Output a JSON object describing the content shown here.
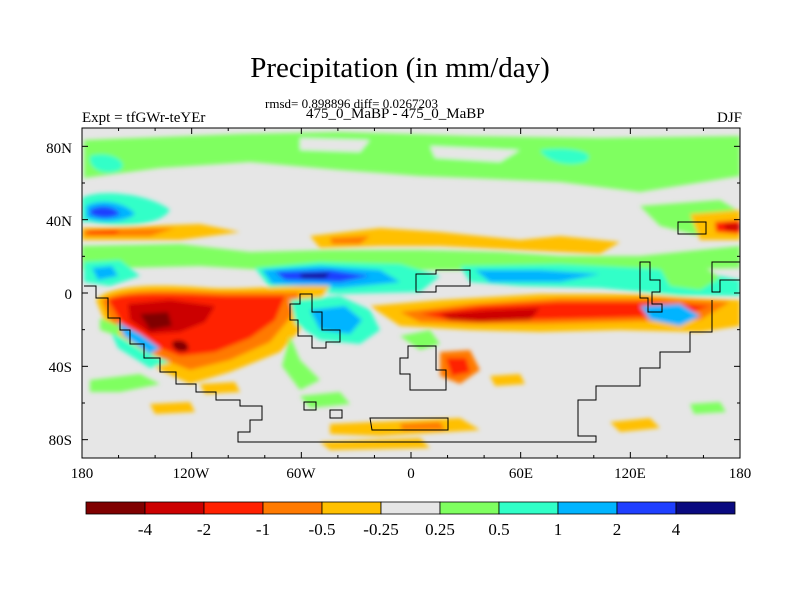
{
  "title": "Precipitation (in mm/day)",
  "stats_line": "rmsd= 0.898896 diff= 0.0267203",
  "experiment_label": "Expt = tfGWr-teYEr",
  "experiment_pair": "475_0_MaBP - 475_0_MaBP",
  "season": "DJF",
  "chart_data": {
    "type": "heatmap",
    "projection": "cylindrical equidistant",
    "variable": "precipitation difference",
    "units": "mm/day",
    "lon_range": [
      -180,
      180
    ],
    "lat_range": [
      -90,
      90
    ],
    "x_ticks": [
      "180",
      "120W",
      "60W",
      "0",
      "60E",
      "120E",
      "180"
    ],
    "y_ticks": [
      "80N",
      "40N",
      "0",
      "40S",
      "80S"
    ],
    "colorbar": {
      "labels": [
        "-4",
        "-2",
        "-1",
        "-0.5",
        "-0.25",
        "0.25",
        "0.5",
        "1",
        "2",
        "4"
      ],
      "colors": [
        "#800000",
        "#cc0000",
        "#ff2000",
        "#ff7a00",
        "#ffc000",
        "#e6e6e6",
        "#7fff60",
        "#30ffc8",
        "#00b4ff",
        "#1f3fff",
        "#0a0a80"
      ]
    },
    "anomaly_regions": [
      {
        "lon": [
          -155,
          -60
        ],
        "lat": [
          -30,
          5
        ],
        "level": "-2"
      },
      {
        "lon": [
          -135,
          -120
        ],
        "lat": [
          -25,
          -15
        ],
        "level": "-4"
      },
      {
        "lon": [
          0,
          165
        ],
        "lat": [
          -15,
          -5
        ],
        "level": "-2"
      },
      {
        "lon": [
          -80,
          20
        ],
        "lat": [
          5,
          15
        ],
        "level": "2"
      },
      {
        "lon": [
          -180,
          -165
        ],
        "lat": [
          40,
          50
        ],
        "level": "4"
      },
      {
        "lon": [
          -180,
          -125
        ],
        "lat": [
          32,
          40
        ],
        "level": "-1"
      },
      {
        "lon": [
          0,
          70
        ],
        "lat": [
          20,
          40
        ],
        "level": "-0.5"
      },
      {
        "lon": [
          30,
          160
        ],
        "lat": [
          5,
          15
        ],
        "level": "1"
      },
      {
        "lon": [
          -180,
          180
        ],
        "lat": [
          50,
          80
        ],
        "level": "0.5"
      }
    ]
  }
}
